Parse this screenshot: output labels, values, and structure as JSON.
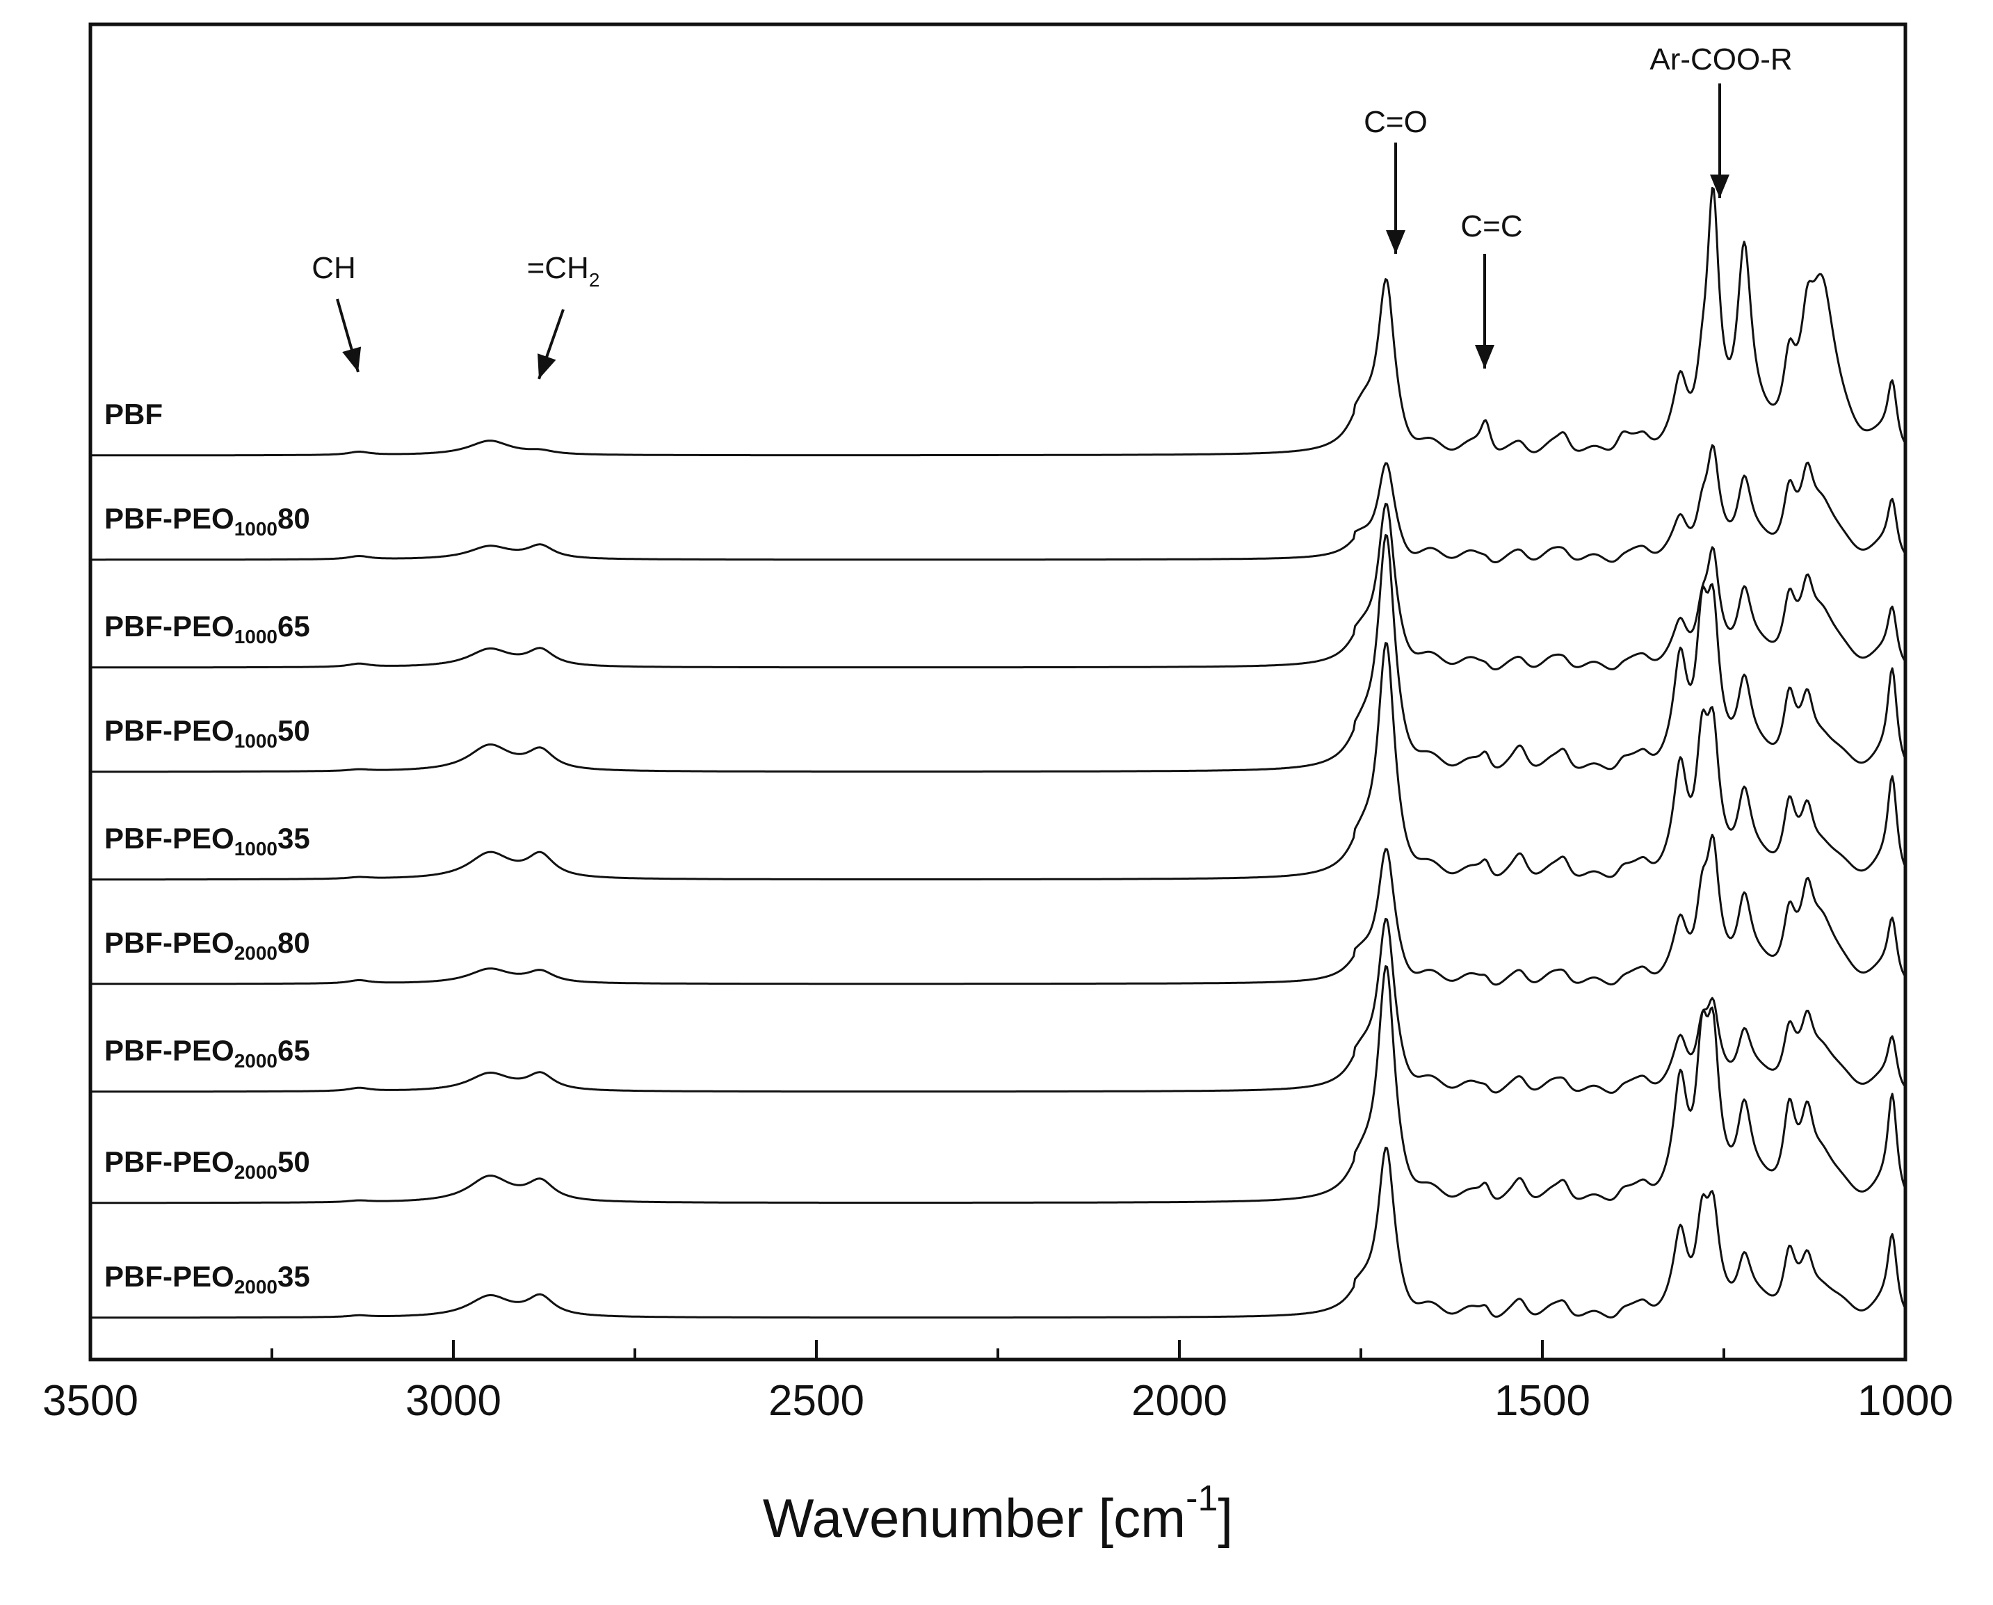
{
  "chart_data": {
    "type": "line",
    "title": "",
    "xlabel": "Wavenumber [cm",
    "xlabel_sup": "-1",
    "xlabel_end": "]",
    "ylabel": "",
    "xlim": [
      3500,
      1000
    ],
    "x_reversed": true,
    "xticks": [
      3500,
      3000,
      2500,
      2000,
      1500,
      1000
    ],
    "xtick_labels": [
      "3500",
      "3000",
      "2500",
      "2000",
      "1500",
      "1000"
    ],
    "grid": false,
    "legend": "inline labels at left",
    "bands": [
      {
        "name": "ch2",
        "center": 2950,
        "width": 35,
        "nominal": 0.14
      },
      {
        "name": "ch2b",
        "center": 2880,
        "width": 22,
        "nominal": 0.12
      },
      {
        "name": "ch",
        "center": 3130,
        "width": 18,
        "nominal": 0.03
      },
      {
        "name": "co",
        "center": 1715,
        "width": 14,
        "nominal": 1.0
      },
      {
        "name": "co_sh",
        "center": 1745,
        "width": 22,
        "nominal": 0.3
      },
      {
        "name": "cc",
        "center": 1578,
        "width": 9,
        "nominal": 0.2
      },
      {
        "name": "b1530",
        "center": 1530,
        "width": 12,
        "nominal": 0.12
      },
      {
        "name": "b1470",
        "center": 1470,
        "width": 10,
        "nominal": 0.1
      },
      {
        "name": "b1390",
        "center": 1390,
        "width": 12,
        "nominal": 0.12
      },
      {
        "name": "b1360",
        "center": 1360,
        "width": 10,
        "nominal": 0.08
      },
      {
        "name": "b1310",
        "center": 1310,
        "width": 11,
        "nominal": 0.5
      },
      {
        "name": "b1280",
        "center": 1280,
        "width": 10,
        "nominal": 0.55
      },
      {
        "name": "b1265",
        "center": 1265,
        "width": 10,
        "nominal": 0.6
      },
      {
        "name": "b1220",
        "center": 1222,
        "width": 12,
        "nominal": 0.55
      },
      {
        "name": "b1160",
        "center": 1160,
        "width": 10,
        "nominal": 0.4
      },
      {
        "name": "b1135",
        "center": 1135,
        "width": 10,
        "nominal": 0.3
      },
      {
        "name": "b1115",
        "center": 1115,
        "width": 22,
        "nominal": 0.6
      },
      {
        "name": "b1020",
        "center": 1018,
        "width": 8,
        "nominal": 0.45
      }
    ],
    "series": [
      {
        "name": "PBF",
        "label": "PBF",
        "sub": "",
        "suffix": "",
        "baseline": 0.45,
        "amps": {
          "ch2": 0.09,
          "ch2b": 0.02,
          "ch": 0.02,
          "co": 1.0,
          "co_sh": 0.25,
          "cc": 0.22,
          "b1530": 0.06,
          "b1470": 0.1,
          "b1390": 0.13,
          "b1360": 0.05,
          "b1310": 0.35,
          "b1280": 0.3,
          "b1265": 1.45,
          "b1220": 1.2,
          "b1160": 0.4,
          "b1135": 0.4,
          "b1115": 1.05,
          "b1020": 0.4
        }
      },
      {
        "name": "PBF-PEO1000 80",
        "label": "PBF-PEO",
        "sub": "1000",
        "suffix": "80",
        "baseline": 0.4,
        "amps": {
          "ch2": 0.08,
          "ch2b": 0.08,
          "ch": 0.02,
          "co": 0.55,
          "co_sh": 0.12,
          "cc": 0.04,
          "b1530": 0.05,
          "b1470": 0.04,
          "b1390": 0.04,
          "b1360": 0.03,
          "b1310": 0.18,
          "b1280": 0.25,
          "b1265": 0.58,
          "b1220": 0.47,
          "b1160": 0.35,
          "b1135": 0.35,
          "b1115": 0.36,
          "b1020": 0.35
        }
      },
      {
        "name": "PBF-PEO1000 65",
        "label": "PBF-PEO",
        "sub": "1000",
        "suffix": "65",
        "baseline": 0.4,
        "amps": {
          "ch2": 0.11,
          "ch2b": 0.1,
          "ch": 0.02,
          "co": 0.95,
          "co_sh": 0.18,
          "cc": 0.04,
          "b1530": 0.05,
          "b1470": 0.04,
          "b1390": 0.04,
          "b1360": 0.03,
          "b1310": 0.2,
          "b1280": 0.3,
          "b1265": 0.6,
          "b1220": 0.45,
          "b1160": 0.35,
          "b1135": 0.33,
          "b1115": 0.35,
          "b1020": 0.35
        }
      },
      {
        "name": "PBF-PEO1000 50",
        "label": "PBF-PEO",
        "sub": "1000",
        "suffix": "50",
        "baseline": 0.4,
        "amps": {
          "ch2": 0.16,
          "ch2b": 0.12,
          "ch": 0.01,
          "co": 1.4,
          "co_sh": 0.2,
          "cc": 0.12,
          "b1530": 0.14,
          "b1470": 0.1,
          "b1390": 0.08,
          "b1360": 0.05,
          "b1310": 0.6,
          "b1280": 0.82,
          "b1265": 0.82,
          "b1220": 0.52,
          "b1160": 0.4,
          "b1135": 0.32,
          "b1115": 0.22,
          "b1020": 0.62
        }
      },
      {
        "name": "PBF-PEO1000 35",
        "label": "PBF-PEO",
        "sub": "1000",
        "suffix": "35",
        "baseline": 0.4,
        "amps": {
          "ch2": 0.16,
          "ch2b": 0.14,
          "ch": 0.01,
          "co": 1.4,
          "co_sh": 0.2,
          "cc": 0.12,
          "b1530": 0.14,
          "b1470": 0.1,
          "b1390": 0.08,
          "b1360": 0.05,
          "b1310": 0.6,
          "b1280": 0.75,
          "b1265": 0.75,
          "b1220": 0.5,
          "b1160": 0.4,
          "b1135": 0.3,
          "b1115": 0.22,
          "b1020": 0.62
        }
      },
      {
        "name": "PBF-PEO2000 80",
        "label": "PBF-PEO",
        "sub": "2000",
        "suffix": "80",
        "baseline": 0.4,
        "amps": {
          "ch2": 0.09,
          "ch2b": 0.07,
          "ch": 0.02,
          "co": 0.78,
          "co_sh": 0.15,
          "cc": 0.06,
          "b1530": 0.07,
          "b1470": 0.05,
          "b1390": 0.05,
          "b1360": 0.04,
          "b1310": 0.3,
          "b1280": 0.45,
          "b1265": 0.72,
          "b1220": 0.5,
          "b1160": 0.35,
          "b1135": 0.38,
          "b1115": 0.4,
          "b1020": 0.38
        }
      },
      {
        "name": "PBF-PEO2000 65",
        "label": "PBF-PEO",
        "sub": "2000",
        "suffix": "65",
        "baseline": 0.4,
        "amps": {
          "ch2": 0.11,
          "ch2b": 0.1,
          "ch": 0.02,
          "co": 1.0,
          "co_sh": 0.2,
          "cc": 0.05,
          "b1530": 0.08,
          "b1470": 0.05,
          "b1390": 0.05,
          "b1360": 0.04,
          "b1310": 0.25,
          "b1280": 0.35,
          "b1265": 0.42,
          "b1220": 0.35,
          "b1160": 0.32,
          "b1135": 0.3,
          "b1115": 0.28,
          "b1020": 0.32
        }
      },
      {
        "name": "PBF-PEO2000 50",
        "label": "PBF-PEO",
        "sub": "2000",
        "suffix": "50",
        "baseline": 0.4,
        "amps": {
          "ch2": 0.16,
          "ch2b": 0.12,
          "ch": 0.01,
          "co": 1.4,
          "co_sh": 0.2,
          "cc": 0.12,
          "b1530": 0.13,
          "b1470": 0.1,
          "b1390": 0.08,
          "b1360": 0.05,
          "b1310": 0.65,
          "b1280": 0.85,
          "b1265": 0.85,
          "b1220": 0.55,
          "b1160": 0.5,
          "b1135": 0.38,
          "b1115": 0.3,
          "b1020": 0.65
        }
      },
      {
        "name": "PBF-PEO2000 35",
        "label": "PBF-PEO",
        "sub": "2000",
        "suffix": "35",
        "baseline": 0.4,
        "amps": {
          "ch2": 0.13,
          "ch2b": 0.12,
          "ch": 0.01,
          "co": 1.0,
          "co_sh": 0.15,
          "cc": 0.08,
          "b1530": 0.1,
          "b1470": 0.07,
          "b1390": 0.06,
          "b1360": 0.04,
          "b1310": 0.45,
          "b1280": 0.55,
          "b1265": 0.55,
          "b1220": 0.35,
          "b1160": 0.35,
          "b1135": 0.25,
          "b1115": 0.2,
          "b1020": 0.5
        }
      }
    ],
    "annotations": [
      {
        "text": "CH",
        "sub": "",
        "x": 3130
      },
      {
        "text": "=CH",
        "sub": "2",
        "x": 2880
      },
      {
        "text": "C=O",
        "sub": "",
        "x": 1715
      },
      {
        "text": "C=C",
        "sub": "",
        "x": 1585
      },
      {
        "text": "Ar-COO-R",
        "sub": "",
        "x": 1270
      }
    ]
  }
}
